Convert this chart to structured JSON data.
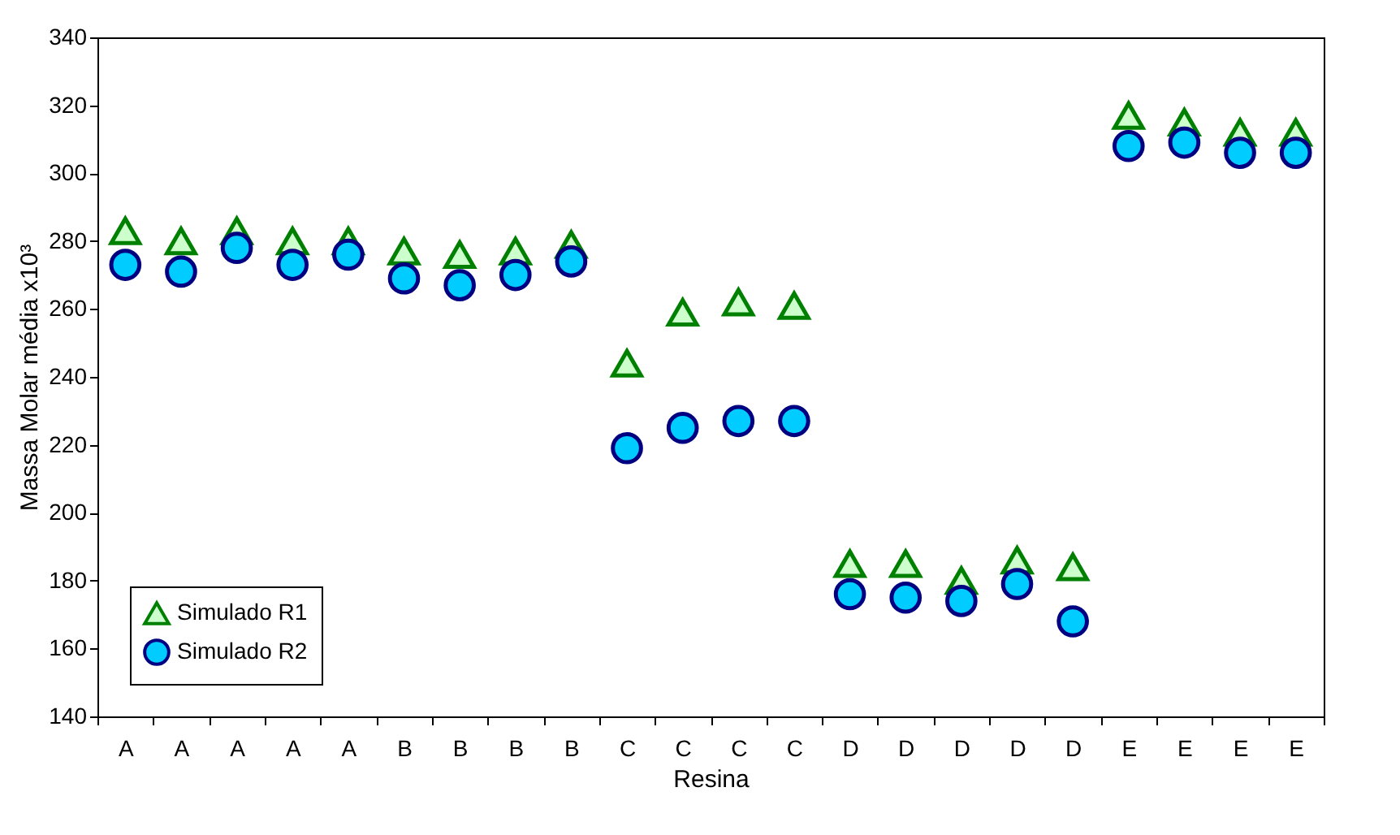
{
  "chart_data": {
    "type": "scatter",
    "xlabel": "Resina",
    "ylabel": "Massa Molar média x10³",
    "categories": [
      "A",
      "A",
      "A",
      "A",
      "A",
      "B",
      "B",
      "B",
      "B",
      "C",
      "C",
      "C",
      "C",
      "D",
      "D",
      "D",
      "D",
      "D",
      "E",
      "E",
      "E",
      "E"
    ],
    "series": [
      {
        "name": "Simulado R1",
        "color": "#ccffcc",
        "marker": "triangle",
        "values": [
          283,
          280,
          283,
          280,
          280,
          277,
          276,
          277,
          279,
          244,
          259,
          262,
          261,
          185,
          185,
          180,
          186,
          184,
          317,
          315,
          312,
          312
        ]
      },
      {
        "name": "Simulado R2",
        "color": "#00ccff",
        "marker": "circle",
        "values": [
          273,
          271,
          278,
          273,
          276,
          269,
          267,
          270,
          274,
          219,
          225,
          227,
          227,
          176,
          175,
          174,
          179,
          168,
          308,
          309,
          306,
          306
        ]
      }
    ],
    "ylim": [
      140,
      340
    ],
    "yticks": [
      140,
      160,
      180,
      200,
      220,
      240,
      260,
      280,
      300,
      320,
      340
    ],
    "grid": false,
    "legend": "bottom left"
  }
}
